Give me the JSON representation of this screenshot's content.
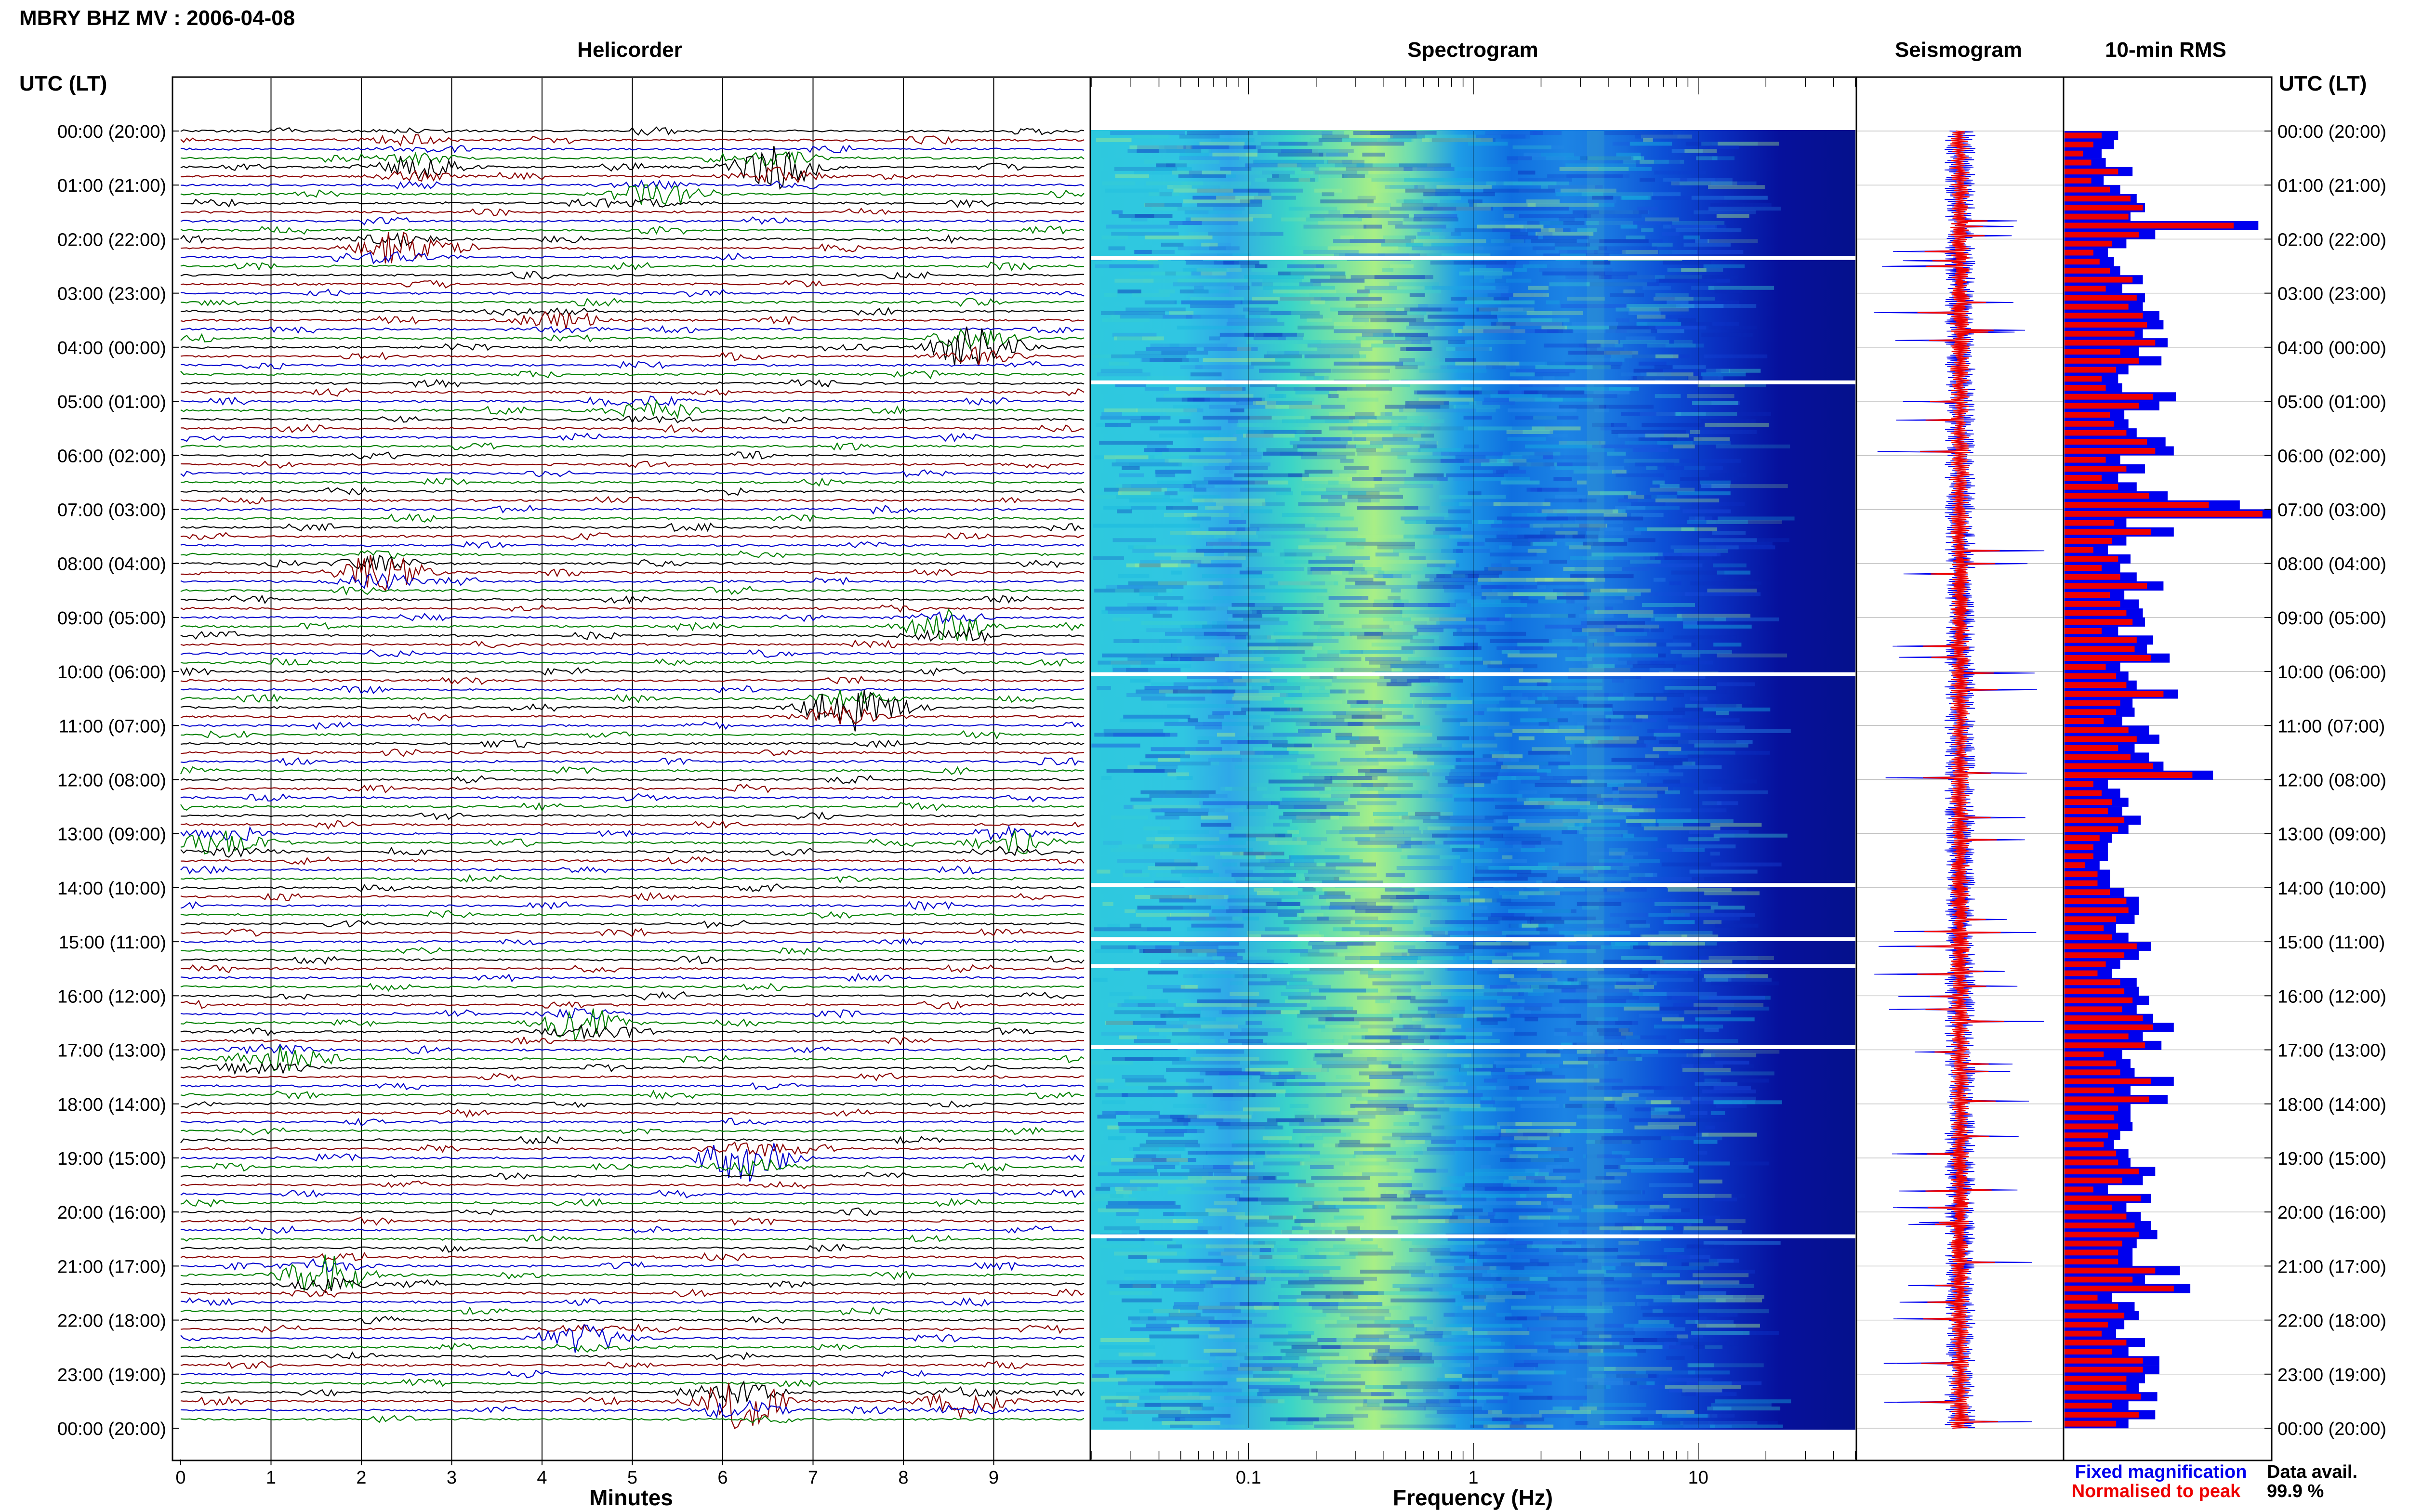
{
  "title": "MBRY BHZ MV : 2006-04-08",
  "panels": {
    "helicorder": "Helicorder",
    "spectrogram": "Spectrogram",
    "seismogram": "Seismogram",
    "rms": "10-min RMS"
  },
  "axes": {
    "left_header": "UTC (LT)",
    "right_header": "UTC (LT)",
    "time_ticks": [
      "00:00 (20:00)",
      "01:00 (21:00)",
      "02:00 (22:00)",
      "03:00 (23:00)",
      "04:00 (00:00)",
      "05:00 (01:00)",
      "06:00 (02:00)",
      "07:00 (03:00)",
      "08:00 (04:00)",
      "09:00 (05:00)",
      "10:00 (06:00)",
      "11:00 (07:00)",
      "12:00 (08:00)",
      "13:00 (09:00)",
      "14:00 (10:00)",
      "15:00 (11:00)",
      "16:00 (12:00)",
      "17:00 (13:00)",
      "18:00 (14:00)",
      "19:00 (15:00)",
      "20:00 (16:00)",
      "21:00 (17:00)",
      "22:00 (18:00)",
      "23:00 (19:00)",
      "00:00 (20:00)"
    ],
    "minutes_label": "Minutes",
    "minutes_ticks": [
      "0",
      "1",
      "2",
      "3",
      "4",
      "5",
      "6",
      "7",
      "8",
      "9"
    ],
    "frequency_label": "Frequency (Hz)",
    "frequency_ticks": [
      "0.1",
      "1",
      "10"
    ]
  },
  "legend": {
    "fixed": "Fixed magnification",
    "normalised": "Normalised to peak",
    "fixed_color": "#0000ee",
    "normalised_color": "#ee0000"
  },
  "availability": {
    "label": "Data avail.",
    "value": "99.9 %"
  },
  "colors": {
    "trace_cycle": [
      "#000000",
      "#8b0000",
      "#0000cd",
      "#008000"
    ],
    "rms_fixed": "#0000ee",
    "rms_normalised": "#ee0000"
  },
  "chart_data": [
    {
      "type": "line",
      "title": "Helicorder",
      "xlabel": "Minutes",
      "x_range": [
        0,
        10
      ],
      "rows": 144,
      "row_duration_min": 10,
      "events": [
        {
          "hour": 0.3,
          "minute": 2.5,
          "amplitude": 0.4
        },
        {
          "hour": 0.7,
          "minute": 2.6,
          "amplitude": 1.2
        },
        {
          "hour": 0.7,
          "minute": 6.6,
          "amplitude": 1.8
        },
        {
          "hour": 1.3,
          "minute": 5.2,
          "amplitude": 0.9
        },
        {
          "hour": 2.3,
          "minute": 2.4,
          "amplitude": 1.3
        },
        {
          "hour": 3.5,
          "minute": 4.2,
          "amplitude": 0.8
        },
        {
          "hour": 4.1,
          "minute": 8.8,
          "amplitude": 1.9
        },
        {
          "hour": 5.2,
          "minute": 5.2,
          "amplitude": 0.9
        },
        {
          "hour": 8.3,
          "minute": 2.2,
          "amplitude": 1.8
        },
        {
          "hour": 9.2,
          "minute": 8.5,
          "amplitude": 1.3
        },
        {
          "hour": 10.8,
          "minute": 7.4,
          "amplitude": 2.0
        },
        {
          "hour": 13.2,
          "minute": 0.5,
          "amplitude": 1.2
        },
        {
          "hour": 13.3,
          "minute": 9.2,
          "amplitude": 1.0
        },
        {
          "hour": 16.6,
          "minute": 4.4,
          "amplitude": 1.4
        },
        {
          "hour": 17.2,
          "minute": 1.0,
          "amplitude": 1.2
        },
        {
          "hour": 19.0,
          "minute": 6.3,
          "amplitude": 1.9
        },
        {
          "hour": 21.3,
          "minute": 1.6,
          "amplitude": 1.6
        },
        {
          "hour": 22.4,
          "minute": 4.5,
          "amplitude": 1.0
        },
        {
          "hour": 23.6,
          "minute": 6.2,
          "amplitude": 2.2
        },
        {
          "hour": 23.5,
          "minute": 8.7,
          "amplitude": 1.1
        }
      ]
    },
    {
      "type": "heatmap",
      "title": "Spectrogram",
      "xlabel": "Frequency (Hz)",
      "x_scale": "log",
      "x_range": [
        0.02,
        50
      ],
      "y_range_hours": [
        0,
        24
      ],
      "peak_frequency_hz": 0.4,
      "secondary_band_hz": 3.5,
      "data_gaps_hours": [
        2.35,
        4.65,
        10.05,
        13.95,
        14.95,
        15.45,
        16.95,
        20.45
      ]
    },
    {
      "type": "line",
      "title": "Seismogram",
      "series": [
        {
          "name": "Fixed magnification",
          "color": "#0000ee"
        },
        {
          "name": "Normalised to peak",
          "color": "#ee0000"
        }
      ]
    },
    {
      "type": "bar",
      "title": "10-min RMS",
      "orientation": "horizontal",
      "bins": 144,
      "x_max": 10,
      "series": [
        {
          "name": "Fixed magnification",
          "values": [
            2.6,
            2.4,
            1.8,
            2.0,
            3.3,
            1.9,
            2.7,
            3.5,
            3.9,
            3.2,
            9.4,
            4.4,
            3.0,
            2.1,
            2.4,
            2.7,
            3.8,
            2.8,
            3.9,
            3.8,
            4.6,
            4.8,
            3.8,
            5.0,
            3.6,
            4.7,
            3.1,
            2.6,
            2.8,
            5.4,
            4.6,
            2.9,
            3.1,
            3.5,
            4.9,
            5.3,
            2.7,
            3.9,
            2.6,
            3.5,
            5.0,
            8.5,
            10.4,
            3.0,
            5.3,
            3.0,
            2.1,
            3.2,
            2.7,
            3.5,
            4.8,
            2.9,
            3.6,
            3.8,
            3.9,
            2.6,
            4.3,
            4.0,
            5.1,
            2.7,
            3.1,
            3.5,
            5.5,
            3.3,
            3.4,
            2.8,
            4.1,
            4.6,
            3.4,
            4.1,
            4.8,
            7.2,
            2.1,
            2.7,
            3.1,
            2.8,
            3.7,
            3.1,
            2.3,
            2.1,
            2.1,
            1.7,
            2.2,
            2.2,
            2.9,
            3.6,
            3.6,
            3.4,
            2.5,
            3.1,
            4.2,
            3.6,
            2.7,
            2.3,
            3.5,
            3.6,
            4.1,
            3.5,
            4.3,
            5.3,
            3.8,
            4.7,
            2.8,
            3.2,
            3.4,
            5.3,
            3.2,
            5.0,
            3.2,
            3.2,
            3.3,
            2.7,
            2.4,
            3.1,
            3.2,
            4.4,
            3.8,
            2.1,
            4.2,
            3.0,
            3.7,
            4.2,
            4.5,
            3.5,
            3.3,
            3.3,
            5.6,
            3.9,
            6.1,
            2.3,
            3.4,
            3.6,
            2.9,
            2.5,
            3.9,
            3.1,
            4.6,
            4.6,
            3.9,
            3.6,
            4.5,
            3.1,
            4.4,
            3.1
          ]
        },
        {
          "name": "Normalised to peak",
          "values": [
            1.8,
            1.4,
            0.9,
            1.3,
            2.6,
            1.3,
            2.2,
            3.2,
            3.8,
            3.1,
            8.2,
            3.6,
            2.3,
            1.4,
            1.7,
            2.2,
            3.3,
            2.0,
            3.5,
            3.1,
            3.8,
            4.0,
            3.4,
            4.4,
            2.7,
            3.6,
            2.5,
            1.8,
            2.0,
            4.3,
            3.6,
            2.2,
            2.4,
            3.0,
            4.0,
            4.4,
            2.0,
            3.0,
            1.8,
            2.6,
            4.1,
            7.0,
            9.6,
            2.4,
            4.2,
            2.3,
            1.4,
            2.6,
            1.8,
            2.7,
            4.0,
            2.2,
            2.7,
            3.0,
            3.3,
            1.8,
            3.5,
            3.4,
            4.2,
            2.0,
            2.5,
            3.0,
            4.8,
            2.7,
            2.5,
            1.9,
            3.1,
            3.5,
            2.6,
            3.2,
            4.3,
            6.2,
            1.4,
            1.8,
            2.3,
            2.1,
            2.9,
            2.6,
            1.7,
            1.4,
            1.4,
            1.0,
            1.6,
            1.6,
            2.2,
            3.0,
            3.1,
            2.5,
            1.9,
            2.3,
            3.5,
            2.9,
            2.0,
            1.6,
            2.7,
            2.9,
            3.3,
            2.8,
            3.8,
            4.3,
            3.1,
            3.9,
            1.9,
            2.5,
            2.7,
            4.2,
            2.4,
            4.1,
            2.6,
            2.4,
            2.6,
            2.1,
            1.9,
            2.5,
            2.6,
            3.6,
            2.8,
            1.4,
            3.7,
            2.3,
            3.0,
            3.4,
            3.6,
            2.8,
            2.6,
            2.6,
            4.4,
            3.3,
            5.3,
            1.6,
            2.6,
            2.9,
            2.1,
            1.8,
            3.0,
            2.3,
            3.8,
            3.8,
            3.0,
            3.0,
            3.7,
            2.3,
            3.6,
            2.5
          ]
        }
      ]
    }
  ]
}
